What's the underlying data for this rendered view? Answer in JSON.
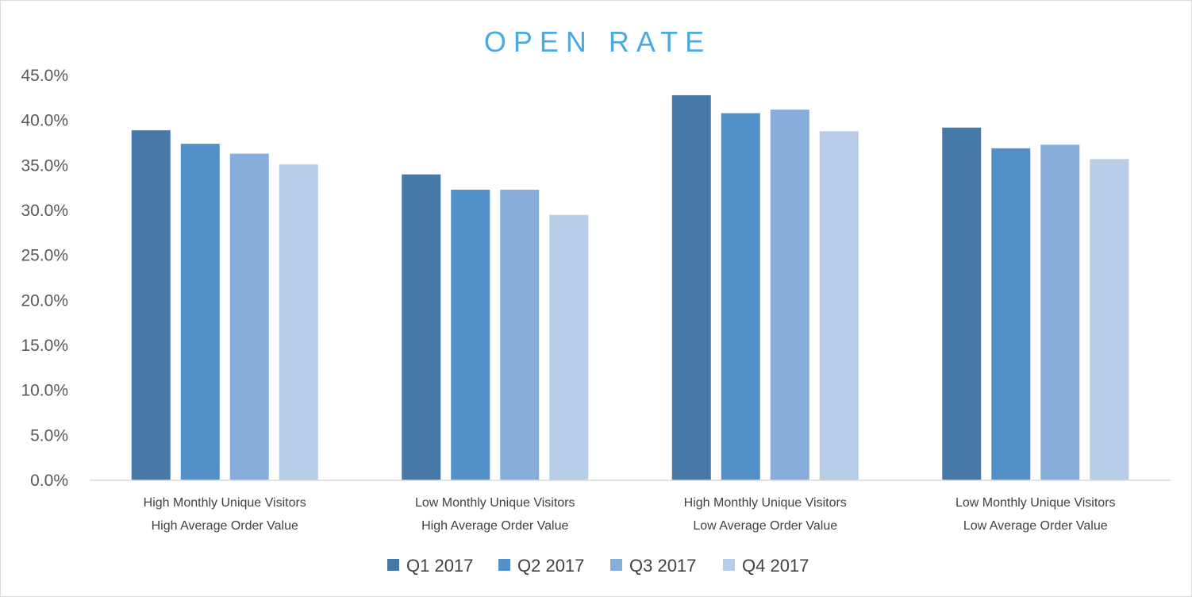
{
  "chart_data": {
    "type": "bar",
    "title": "OPEN RATE",
    "title_color": "#4aa9de",
    "categories": [
      [
        "High Monthly Unique Visitors",
        "High Average Order Value"
      ],
      [
        "Low Monthly Unique Visitors",
        "High Average Order Value"
      ],
      [
        "High Monthly Unique Visitors",
        "Low Average Order Value"
      ],
      [
        "Low Monthly Unique Visitors",
        "Low Average Order Value"
      ]
    ],
    "series": [
      {
        "name": "Q1 2017",
        "color": "#4678a8",
        "values": [
          38.9,
          34.0,
          42.8,
          39.2
        ]
      },
      {
        "name": "Q2 2017",
        "color": "#5390c7",
        "values": [
          37.4,
          32.3,
          40.8,
          36.9
        ]
      },
      {
        "name": "Q3 2017",
        "color": "#87aedb",
        "values": [
          36.3,
          32.3,
          41.2,
          37.3
        ]
      },
      {
        "name": "Q4 2017",
        "color": "#b8cde8",
        "values": [
          35.1,
          29.5,
          38.8,
          35.7
        ]
      }
    ],
    "ylim": [
      0,
      45
    ],
    "yticks": [
      "0.0%",
      "5.0%",
      "10.0%",
      "15.0%",
      "20.0%",
      "25.0%",
      "30.0%",
      "35.0%",
      "40.0%",
      "45.0%"
    ],
    "ytick_values": [
      0,
      5,
      10,
      15,
      20,
      25,
      30,
      35,
      40,
      45
    ],
    "grid": false,
    "legend_position": "bottom"
  }
}
